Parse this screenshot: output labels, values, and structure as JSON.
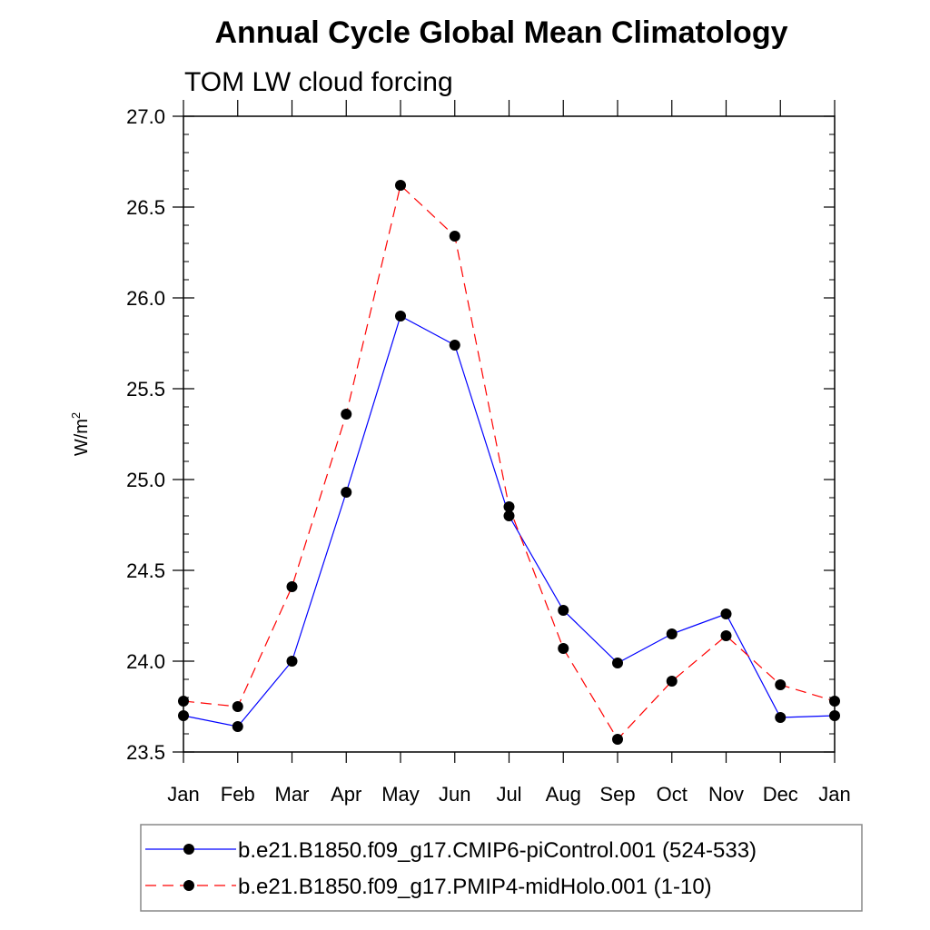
{
  "chart_data": {
    "type": "line",
    "title": "Annual Cycle Global Mean Climatology",
    "subtitle": "TOM LW cloud forcing",
    "ylabel_base": "W/m",
    "ylabel_sup": "2",
    "xlabel": "",
    "categories": [
      "Jan",
      "Feb",
      "Mar",
      "Apr",
      "May",
      "Jun",
      "Jul",
      "Aug",
      "Sep",
      "Oct",
      "Nov",
      "Dec",
      "Jan"
    ],
    "ylim": [
      23.5,
      27.0
    ],
    "yticks": [
      "23.5",
      "24.0",
      "24.5",
      "25.0",
      "25.5",
      "26.0",
      "26.5",
      "27.0"
    ],
    "series": [
      {
        "name": "b.e21.B1850.f09_g17.CMIP6-piControl.001 (524-533)",
        "color": "#0000ff",
        "dash": "solid",
        "values": [
          23.7,
          23.64,
          24.0,
          24.93,
          25.9,
          25.74,
          24.8,
          24.28,
          23.99,
          24.15,
          24.26,
          23.69,
          23.7
        ]
      },
      {
        "name": "b.e21.B1850.f09_g17.PMIP4-midHolo.001 (1-10)",
        "color": "#ff0000",
        "dash": "dashed",
        "values": [
          23.78,
          23.75,
          24.41,
          25.36,
          26.62,
          26.34,
          24.85,
          24.07,
          23.57,
          23.89,
          24.14,
          23.87,
          23.78
        ]
      }
    ],
    "legend_position": "bottom"
  }
}
